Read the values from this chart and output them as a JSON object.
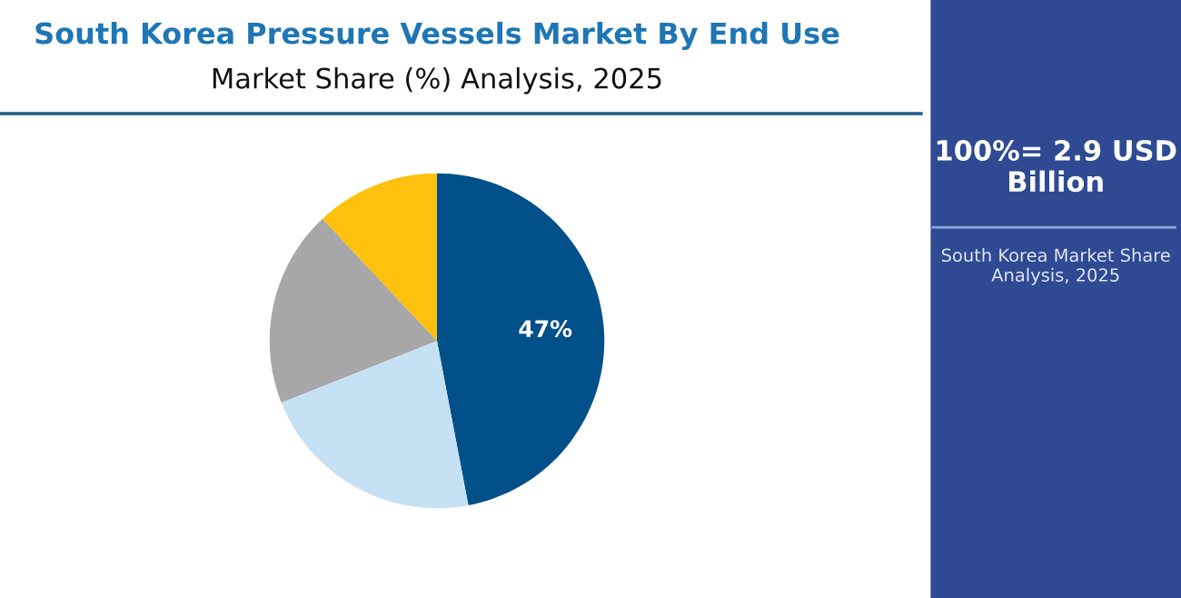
{
  "chart_data": {
    "type": "pie",
    "title": "South Korea Pressure Vessels Market By End Use",
    "subtitle": "Market Share (%) Analysis, 2025",
    "categories": [
      null,
      null,
      null,
      null
    ],
    "values": [
      47,
      22,
      19,
      12
    ],
    "colors": [
      "#02508a",
      "#c5e1f3",
      "#a7a6a8",
      "#fdc10e"
    ],
    "value_labels": [
      "47%",
      null,
      null,
      null
    ],
    "annotations": [
      "100%= 2.9 USD Billion",
      "South Korea Market Share Analysis, 2025"
    ]
  }
}
